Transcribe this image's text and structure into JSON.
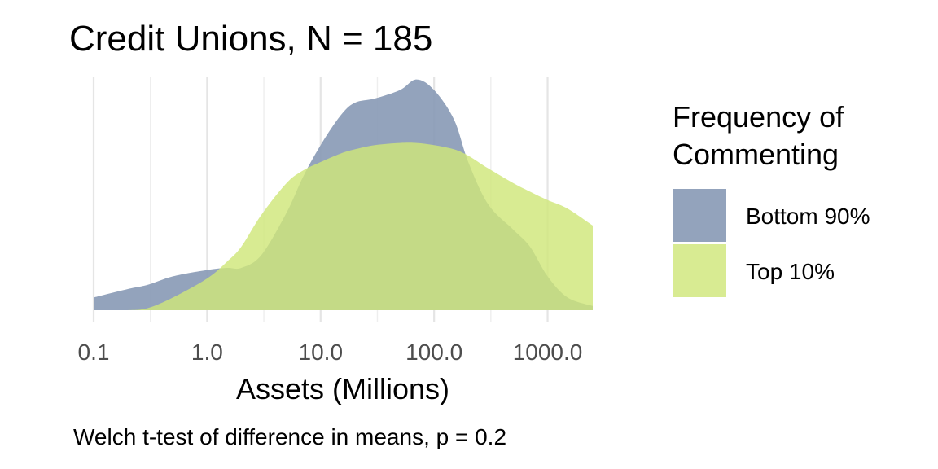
{
  "chart_data": {
    "type": "area",
    "title": "Credit Unions, N = 185",
    "xlabel": "Assets (Millions)",
    "ylabel": "",
    "x_scale": "log10",
    "xlim": [
      0.1,
      2500
    ],
    "x_ticks": [
      0.1,
      1.0,
      10.0,
      100.0,
      1000.0
    ],
    "x_tick_labels": [
      "0.1",
      "1.0",
      "10.0",
      "100.0",
      "1000.0"
    ],
    "ylim": [
      0,
      1.1
    ],
    "grid": true,
    "legend": {
      "title": "Frequency of Commenting",
      "position": "right"
    },
    "caption": "Welch t-test of difference in means, p = 0.2",
    "series": [
      {
        "name": "Bottom 90%",
        "color": "#8a9bb6",
        "x": [
          0.1,
          0.2,
          0.3,
          0.5,
          1.0,
          1.5,
          2.0,
          3.0,
          5.0,
          7.0,
          10.0,
          15.0,
          20.0,
          30.0,
          50.0,
          70.0,
          100.0,
          150.0,
          200.0,
          300.0,
          500.0,
          700.0,
          1000.0,
          1500.0,
          2500.0
        ],
        "y": [
          0.06,
          0.1,
          0.12,
          0.16,
          0.19,
          0.2,
          0.2,
          0.26,
          0.46,
          0.63,
          0.78,
          0.92,
          0.98,
          1.0,
          1.04,
          1.09,
          1.04,
          0.9,
          0.7,
          0.5,
          0.38,
          0.3,
          0.16,
          0.06,
          0.02
        ]
      },
      {
        "name": "Top 10%",
        "color": "#cfe67a",
        "x": [
          0.1,
          0.2,
          0.3,
          0.5,
          1.0,
          1.5,
          2.0,
          3.0,
          5.0,
          7.0,
          10.0,
          15.0,
          20.0,
          30.0,
          50.0,
          70.0,
          100.0,
          150.0,
          200.0,
          300.0,
          500.0,
          700.0,
          1000.0,
          1500.0,
          2500.0
        ],
        "y": [
          0.0,
          0.0,
          0.01,
          0.06,
          0.15,
          0.23,
          0.3,
          0.45,
          0.6,
          0.66,
          0.7,
          0.74,
          0.76,
          0.78,
          0.79,
          0.79,
          0.78,
          0.76,
          0.73,
          0.67,
          0.6,
          0.56,
          0.52,
          0.48,
          0.4
        ]
      }
    ]
  }
}
